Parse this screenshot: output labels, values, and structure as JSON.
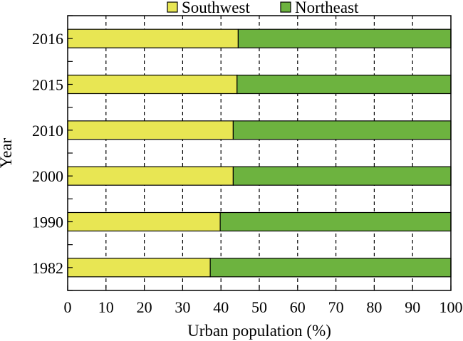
{
  "chart_data": {
    "type": "bar",
    "stacked": true,
    "orientation": "horizontal",
    "categories": [
      "2016",
      "2015",
      "2010",
      "2000",
      "1990",
      "1982"
    ],
    "series": [
      {
        "name": "Southwest",
        "color": "#e8e653",
        "values": [
          44.5,
          44.2,
          43.2,
          43.2,
          39.8,
          37.2
        ]
      },
      {
        "name": "Northeast",
        "color": "#6db33f",
        "values": [
          55.5,
          55.8,
          56.8,
          56.8,
          60.2,
          62.8
        ]
      }
    ],
    "xlabel": "Urban population (%)",
    "ylabel": "Year",
    "xlim": [
      0,
      100
    ],
    "xticks": [
      0,
      10,
      20,
      30,
      40,
      50,
      60,
      70,
      80,
      90,
      100
    ],
    "grid": "vertical dashed",
    "legend": "top"
  }
}
